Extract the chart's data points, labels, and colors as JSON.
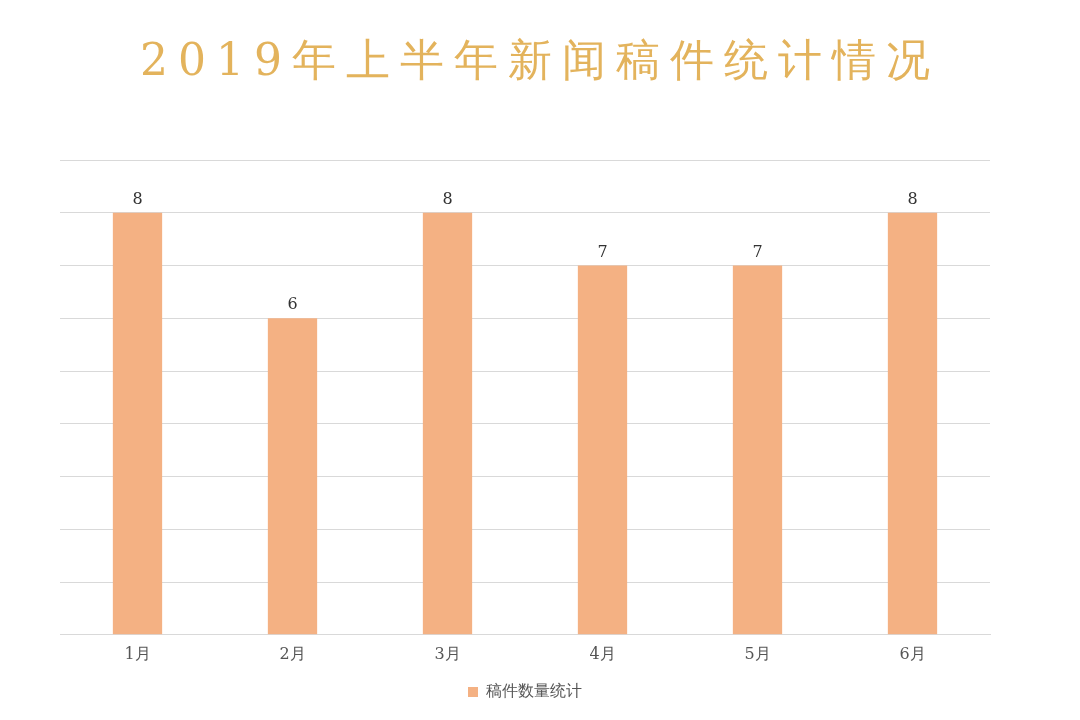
{
  "chart_data": {
    "type": "bar",
    "title": "2019年上半年新闻稿件统计情况",
    "categories": [
      "1月",
      "2月",
      "3月",
      "4月",
      "5月",
      "6月"
    ],
    "series": [
      {
        "name": "稿件数量统计",
        "color": "#f4b183",
        "values": [
          8,
          6,
          8,
          7,
          7,
          8
        ]
      }
    ],
    "ylim": [
      0,
      9
    ],
    "yticks": [
      {
        "value": 0,
        "label": null
      },
      {
        "value": 1,
        "label": null
      },
      {
        "value": 2,
        "label": null
      },
      {
        "value": 3,
        "label": null
      },
      {
        "value": 4,
        "label": null
      },
      {
        "value": 5,
        "label": null
      },
      {
        "value": 6,
        "label": null
      },
      {
        "value": 7,
        "label": null
      },
      {
        "value": 8,
        "label": null
      },
      {
        "value": 9,
        "label": null
      }
    ],
    "tick_labels": "x",
    "grid": "y",
    "legend": "bottom",
    "data_labels": true
  }
}
